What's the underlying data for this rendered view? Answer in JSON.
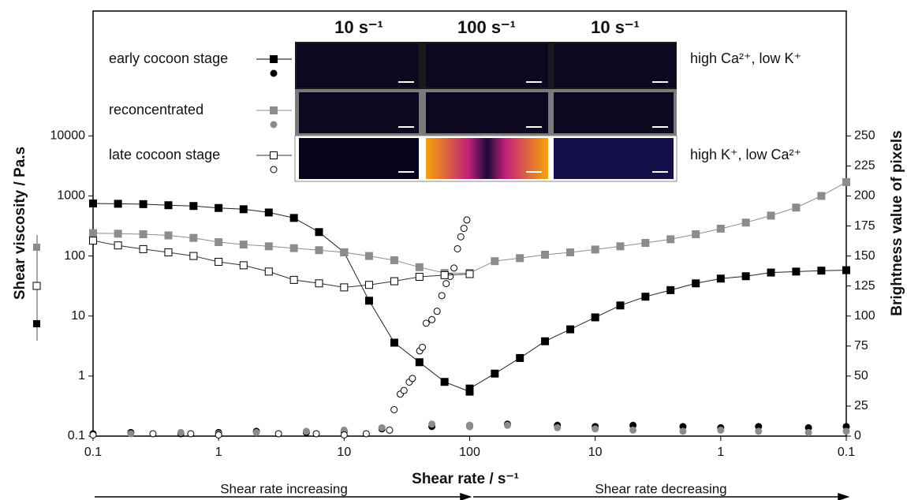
{
  "chart_data": {
    "type": "scatter-line",
    "x_label": "Shear rate / s⁻¹",
    "y_label": "Shear viscosity / Pa.s",
    "y2_label": "Brightness value of pixels",
    "sweep_labels": [
      "Shear rate increasing",
      "Shear rate decreasing"
    ],
    "image_columns": [
      "10 s⁻¹",
      "100 s⁻¹",
      "10 s⁻¹"
    ],
    "xlog": true,
    "ylog": true,
    "xlim": [
      0.1,
      100
    ],
    "xticks": {
      "increasing": [
        0.1,
        1,
        10,
        100
      ],
      "decreasing": [
        10,
        1,
        0.1
      ]
    },
    "ylim": [
      0.1,
      1200000
    ],
    "yticks": [
      0.1,
      1,
      10,
      100,
      1000,
      10000
    ],
    "y2lim": [
      0,
      354
    ],
    "y2ticks": [
      0,
      25,
      50,
      75,
      100,
      125,
      150,
      175,
      200,
      225,
      250
    ],
    "series": [
      {
        "name": "early cocoon stage",
        "color": "#000000",
        "marker": "filled",
        "condition": "high Ca²⁺, low K⁺",
        "viscosity": {
          "increasing": {
            "x": [
              0.1,
              0.158,
              0.251,
              0.398,
              0.631,
              1,
              1.58,
              2.51,
              3.98,
              6.31,
              10,
              15.8,
              25.1,
              39.8,
              63.1,
              100
            ],
            "values": [
              750,
              740,
              730,
              700,
              680,
              630,
              600,
              530,
              430,
              250,
              115,
              18,
              3.6,
              1.7,
              0.8,
              0.55
            ]
          },
          "decreasing": {
            "x": [
              100,
              63.1,
              39.8,
              25.1,
              15.8,
              10,
              6.31,
              3.98,
              2.51,
              1.58,
              1,
              0.631,
              0.398,
              0.251,
              0.158,
              0.1
            ],
            "values": [
              0.62,
              1.1,
              2,
              3.8,
              6,
              9.5,
              15,
              21,
              27,
              35,
              42,
              46,
              53,
              55,
              57,
              58
            ]
          }
        },
        "brightness": {
          "increasing": {
            "x": [
              0.1,
              0.2,
              0.5,
              1,
              2,
              5,
              10,
              20,
              50,
              100
            ],
            "values": [
              2,
              3,
              2,
              3,
              4,
              3,
              4,
              6,
              8,
              8
            ]
          },
          "decreasing": {
            "x": [
              100,
              50,
              20,
              10,
              5,
              2,
              1,
              0.5,
              0.2,
              0.1
            ],
            "values": [
              9,
              10,
              9,
              8,
              9,
              8,
              7,
              8,
              7,
              8
            ]
          }
        }
      },
      {
        "name": "reconcentrated",
        "color": "#8c8c8c",
        "marker": "filled",
        "viscosity": {
          "increasing": {
            "x": [
              0.1,
              0.158,
              0.251,
              0.398,
              0.631,
              1,
              1.58,
              2.51,
              3.98,
              6.31,
              10,
              15.8,
              25.1,
              39.8,
              63.1,
              100
            ],
            "values": [
              240,
              235,
              230,
              220,
              200,
              170,
              155,
              145,
              135,
              125,
              115,
              100,
              85,
              65,
              52,
              52
            ]
          },
          "decreasing": {
            "x": [
              100,
              63.1,
              39.8,
              25.1,
              15.8,
              10,
              6.31,
              3.98,
              2.51,
              1.58,
              1,
              0.631,
              0.398,
              0.251,
              0.158,
              0.1
            ],
            "values": [
              52,
              82,
              92,
              105,
              115,
              128,
              145,
              165,
              190,
              230,
              285,
              360,
              470,
              640,
              1000,
              1700
            ]
          }
        },
        "brightness": {
          "increasing": {
            "x": [
              0.1,
              0.2,
              0.5,
              1,
              2,
              5,
              10,
              20,
              50,
              100
            ],
            "values": [
              1,
              2,
              3,
              2,
              3,
              4,
              5,
              7,
              10,
              9
            ]
          },
          "decreasing": {
            "x": [
              100,
              50,
              20,
              10,
              5,
              2,
              1,
              0.5,
              0.2,
              0.1
            ],
            "values": [
              8,
              9,
              7,
              6,
              5,
              4,
              5,
              4,
              3,
              4
            ]
          }
        }
      },
      {
        "name": "late cocoon stage",
        "color": "#000000",
        "marker": "open",
        "condition": "high K⁺, low Ca²⁺",
        "viscosity": {
          "increasing": {
            "x": [
              0.1,
              0.158,
              0.251,
              0.398,
              0.631,
              1,
              1.58,
              2.51,
              3.98,
              6.31,
              10,
              15.8,
              25.1,
              39.8,
              63.1,
              100
            ],
            "values": [
              180,
              150,
              130,
              115,
              100,
              80,
              70,
              55,
              40,
              35,
              30,
              33,
              38,
              45,
              48,
              50
            ]
          }
        },
        "brightness": {
          "increasing": {
            "x": [
              0.1,
              0.3,
              0.6,
              1,
              3,
              6,
              10,
              15,
              23,
              25,
              28,
              30,
              33,
              35,
              40,
              42,
              45,
              50,
              55,
              60,
              65,
              70,
              75,
              80,
              85,
              90,
              95
            ],
            "values": [
              1,
              2,
              2,
              1,
              2,
              2,
              1,
              2,
              5,
              22,
              35,
              38,
              45,
              48,
              71,
              74,
              94,
              97,
              104,
              117,
              127,
              133,
              140,
              156,
              166,
              173,
              180
            ]
          }
        }
      }
    ]
  }
}
